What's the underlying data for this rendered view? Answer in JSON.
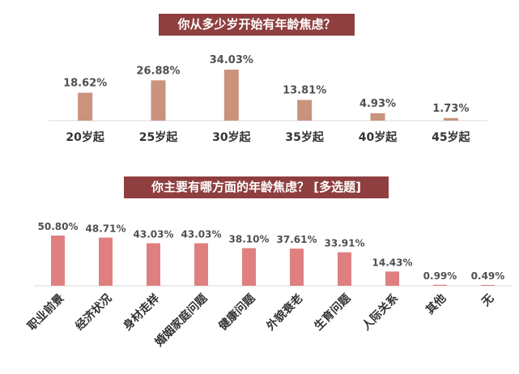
{
  "chart_data": [
    {
      "type": "bar",
      "title": "你从多少岁开始有年龄焦虑？",
      "categories": [
        "20岁起",
        "25岁起",
        "30岁起",
        "35岁起",
        "40岁起",
        "45岁起"
      ],
      "values": [
        18.62,
        26.88,
        34.03,
        13.81,
        4.93,
        1.73
      ],
      "value_labels": [
        "18.62%",
        "26.88%",
        "34.03%",
        "13.81%",
        "4.93%",
        "1.73%"
      ],
      "unit": "%",
      "bar_color": "#c9937c",
      "grid": false,
      "legend": "none"
    },
    {
      "type": "bar",
      "title": "你主要有哪方面的年龄焦虑？ [多选题]",
      "categories": [
        "职业前景",
        "经济状况",
        "身材走样",
        "婚姻家庭问题",
        "健康问题",
        "外貌衰老",
        "生育问题",
        "人际关系",
        "其他",
        "无"
      ],
      "values": [
        50.8,
        48.71,
        43.03,
        43.03,
        38.1,
        37.61,
        33.91,
        14.43,
        0.99,
        0.49
      ],
      "value_labels": [
        "50.80%",
        "48.71%",
        "43.03%",
        "43.03%",
        "38.10%",
        "37.61%",
        "33.91%",
        "14.43%",
        "0.99%",
        "0.49%"
      ],
      "unit": "%",
      "bar_color": "#e07f7f",
      "grid": false,
      "legend": "none"
    }
  ]
}
